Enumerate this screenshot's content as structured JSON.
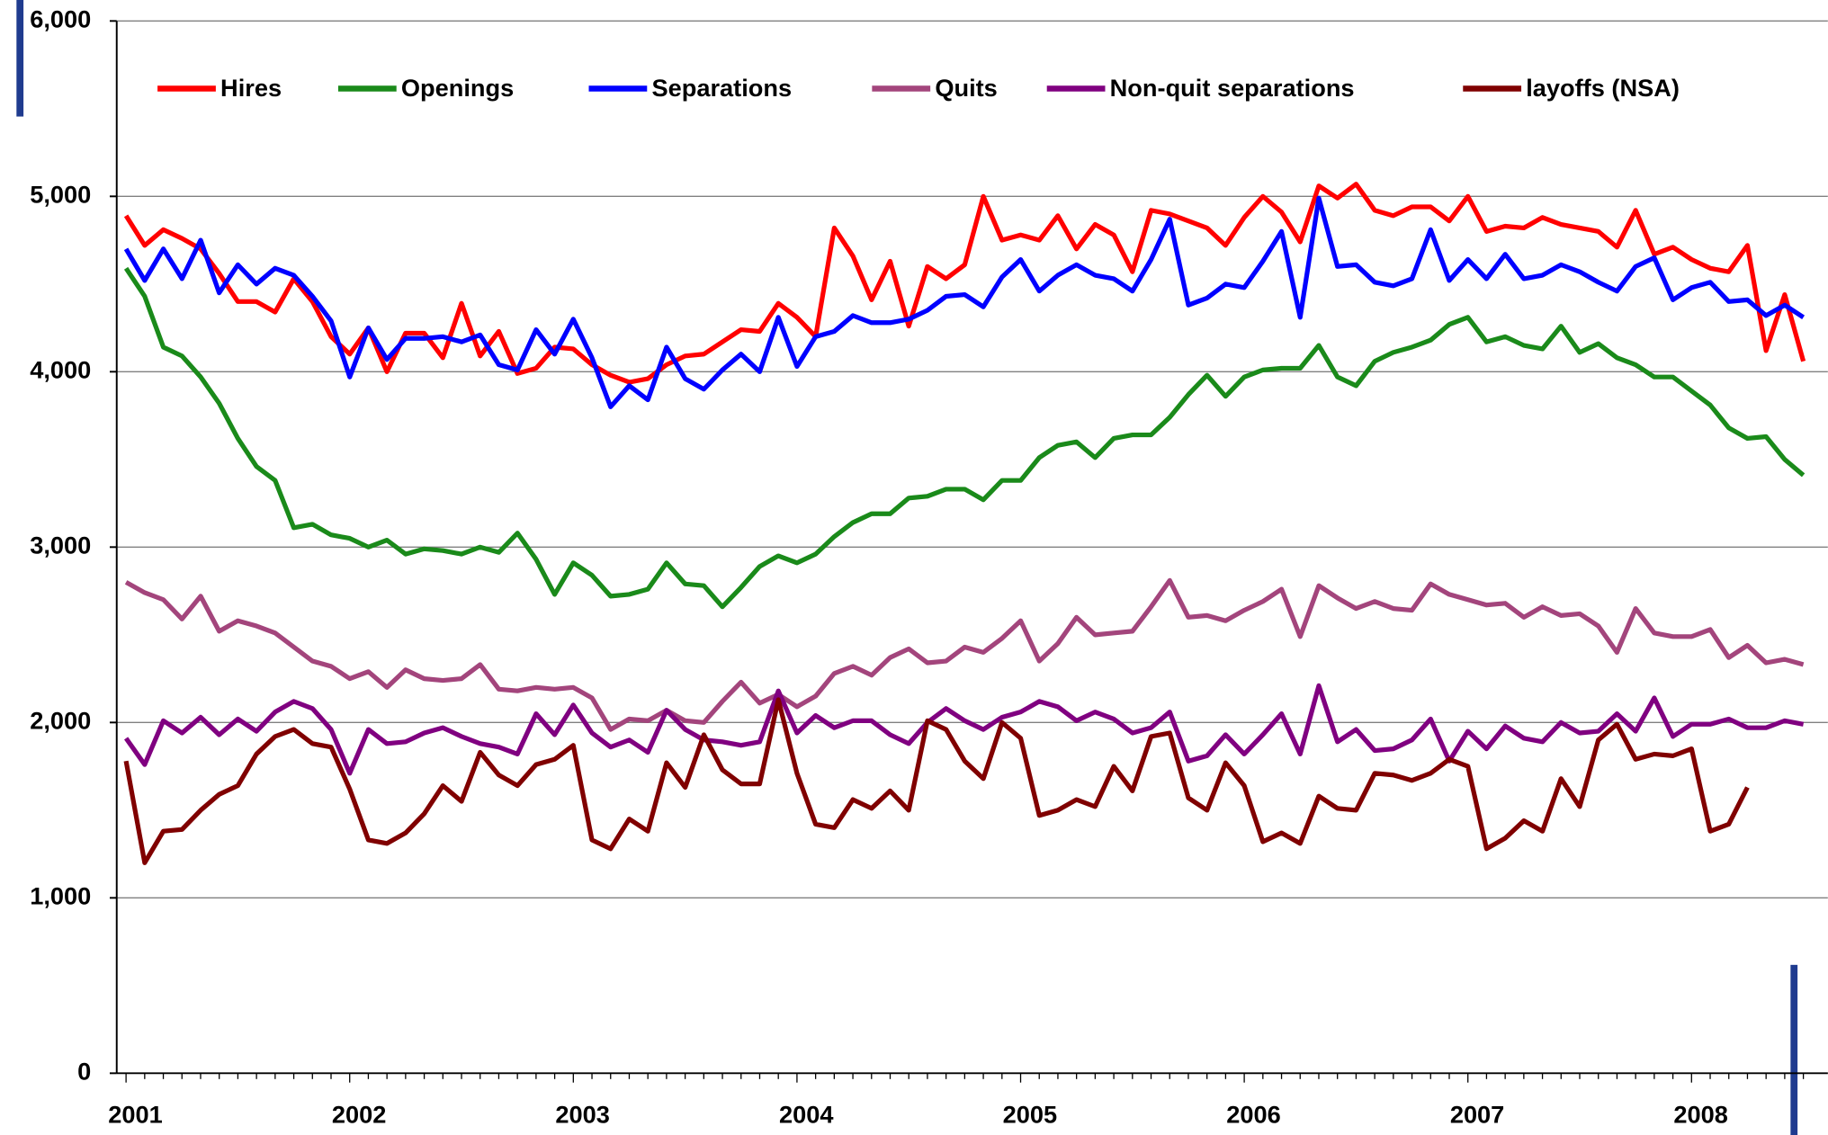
{
  "chart_data": {
    "type": "line",
    "categories": [
      "2001",
      null,
      null,
      null,
      null,
      null,
      null,
      null,
      null,
      null,
      null,
      null,
      "2002",
      null,
      null,
      null,
      null,
      null,
      null,
      null,
      null,
      null,
      null,
      null,
      "2003",
      null,
      null,
      null,
      null,
      null,
      null,
      null,
      null,
      null,
      null,
      null,
      "2004",
      null,
      null,
      null,
      null,
      null,
      null,
      null,
      null,
      null,
      null,
      null,
      "2005",
      null,
      null,
      null,
      null,
      null,
      null,
      null,
      null,
      null,
      null,
      null,
      "2006",
      null,
      null,
      null,
      null,
      null,
      null,
      null,
      null,
      null,
      null,
      null,
      "2007",
      null,
      null,
      null,
      null,
      null,
      null,
      null,
      null,
      null,
      null,
      null,
      "2008",
      null,
      null,
      null,
      null,
      null,
      null
    ],
    "series": [
      {
        "name": "Hires",
        "color": "#ff0000",
        "values": [
          4890,
          4720,
          4810,
          4760,
          4700,
          4560,
          4400,
          4400,
          4340,
          4530,
          4400,
          4200,
          4100,
          4250,
          4000,
          4220,
          4220,
          4080,
          4390,
          4090,
          4230,
          3990,
          4020,
          4140,
          4130,
          4040,
          3980,
          3940,
          3960,
          4040,
          4090,
          4100,
          4170,
          4240,
          4230,
          4390,
          4310,
          4200,
          4820,
          4660,
          4410,
          4630,
          4260,
          4600,
          4530,
          4610,
          5000,
          4750,
          4780,
          4750,
          4890,
          4700,
          4840,
          4780,
          4570,
          4920,
          4900,
          4860,
          4820,
          4720,
          4880,
          5000,
          4910,
          4740,
          5060,
          4990,
          5070,
          4920,
          4890,
          4940,
          4940,
          4860,
          5000,
          4800,
          4830,
          4820,
          4880,
          4840,
          4820,
          4800,
          4710,
          4920,
          4670,
          4710,
          4640,
          4590,
          4570,
          4720,
          4120,
          4440,
          4060
        ]
      },
      {
        "name": "Openings",
        "color": "#1a8a1a",
        "values": [
          4590,
          4430,
          4140,
          4090,
          3970,
          3820,
          3620,
          3460,
          3380,
          3110,
          3130,
          3070,
          3050,
          3000,
          3040,
          2960,
          2990,
          2980,
          2960,
          3000,
          2970,
          3080,
          2930,
          2730,
          2910,
          2840,
          2720,
          2730,
          2760,
          2910,
          2790,
          2780,
          2660,
          2770,
          2890,
          2950,
          2910,
          2960,
          3060,
          3140,
          3190,
          3190,
          3280,
          3290,
          3330,
          3330,
          3270,
          3380,
          3380,
          3510,
          3580,
          3600,
          3510,
          3620,
          3640,
          3640,
          3740,
          3870,
          3980,
          3860,
          3970,
          4010,
          4020,
          4020,
          4150,
          3970,
          3920,
          4060,
          4110,
          4140,
          4180,
          4270,
          4310,
          4170,
          4200,
          4150,
          4130,
          4260,
          4110,
          4160,
          4080,
          4040,
          3970,
          3970,
          3890,
          3810,
          3680,
          3620,
          3630,
          3500,
          3410
        ]
      },
      {
        "name": "Separations",
        "color": "#0000ff",
        "values": [
          4700,
          4520,
          4700,
          4530,
          4750,
          4450,
          4610,
          4500,
          4590,
          4550,
          4430,
          4290,
          3970,
          4250,
          4070,
          4190,
          4190,
          4200,
          4170,
          4210,
          4040,
          4010,
          4240,
          4100,
          4300,
          4080,
          3800,
          3920,
          3840,
          4140,
          3960,
          3900,
          4010,
          4100,
          4000,
          4310,
          4030,
          4200,
          4230,
          4320,
          4280,
          4280,
          4300,
          4350,
          4430,
          4440,
          4370,
          4540,
          4640,
          4460,
          4550,
          4610,
          4550,
          4530,
          4460,
          4640,
          4870,
          4380,
          4420,
          4500,
          4480,
          4630,
          4800,
          4310,
          4990,
          4600,
          4610,
          4510,
          4490,
          4530,
          4810,
          4520,
          4640,
          4530,
          4670,
          4530,
          4550,
          4610,
          4570,
          4510,
          4460,
          4600,
          4650,
          4410,
          4480,
          4510,
          4400,
          4410,
          4320,
          4380,
          4310
        ]
      },
      {
        "name": "Quits",
        "color": "#a3457c",
        "values": [
          2800,
          2740,
          2700,
          2590,
          2720,
          2520,
          2580,
          2550,
          2510,
          2430,
          2350,
          2320,
          2250,
          2290,
          2200,
          2300,
          2250,
          2240,
          2250,
          2330,
          2190,
          2180,
          2200,
          2190,
          2200,
          2140,
          1960,
          2020,
          2010,
          2070,
          2010,
          2000,
          2120,
          2230,
          2110,
          2160,
          2090,
          2150,
          2280,
          2320,
          2270,
          2370,
          2420,
          2340,
          2350,
          2430,
          2400,
          2480,
          2580,
          2350,
          2450,
          2600,
          2500,
          2510,
          2520,
          2660,
          2810,
          2600,
          2610,
          2580,
          2640,
          2690,
          2760,
          2490,
          2780,
          2710,
          2650,
          2690,
          2650,
          2640,
          2790,
          2730,
          2700,
          2670,
          2680,
          2600,
          2660,
          2610,
          2620,
          2550,
          2400,
          2650,
          2510,
          2490,
          2490,
          2530,
          2370,
          2440,
          2340,
          2360,
          2330
        ]
      },
      {
        "name": "Non-quit separations",
        "color": "#800080",
        "values": [
          1910,
          1760,
          2010,
          1940,
          2030,
          1930,
          2020,
          1950,
          2060,
          2120,
          2080,
          1960,
          1710,
          1960,
          1880,
          1890,
          1940,
          1970,
          1920,
          1880,
          1860,
          1820,
          2050,
          1930,
          2100,
          1940,
          1860,
          1900,
          1830,
          2070,
          1960,
          1900,
          1890,
          1870,
          1890,
          2180,
          1940,
          2040,
          1970,
          2010,
          2010,
          1930,
          1880,
          2000,
          2080,
          2010,
          1960,
          2030,
          2060,
          2120,
          2090,
          2010,
          2060,
          2020,
          1940,
          1970,
          2060,
          1780,
          1810,
          1930,
          1820,
          1930,
          2050,
          1820,
          2210,
          1890,
          1960,
          1840,
          1850,
          1900,
          2020,
          1780,
          1950,
          1850,
          1980,
          1910,
          1890,
          2000,
          1940,
          1950,
          2050,
          1950,
          2140,
          1920,
          1990,
          1990,
          2020,
          1970,
          1970,
          2010,
          1990
        ]
      },
      {
        "name": "layoffs (NSA)",
        "color": "#800000",
        "values": [
          1780,
          1200,
          1380,
          1390,
          1500,
          1590,
          1640,
          1820,
          1920,
          1960,
          1880,
          1860,
          1620,
          1330,
          1310,
          1370,
          1480,
          1640,
          1550,
          1830,
          1700,
          1640,
          1760,
          1790,
          1870,
          1330,
          1280,
          1450,
          1380,
          1770,
          1630,
          1930,
          1730,
          1650,
          1650,
          2130,
          1710,
          1420,
          1400,
          1560,
          1510,
          1610,
          1500,
          2010,
          1960,
          1780,
          1680,
          2000,
          1910,
          1470,
          1500,
          1560,
          1520,
          1750,
          1610,
          1920,
          1940,
          1570,
          1500,
          1770,
          1640,
          1320,
          1370,
          1310,
          1580,
          1510,
          1500,
          1710,
          1700,
          1670,
          1710,
          1790,
          1750,
          1280,
          1340,
          1440,
          1380,
          1680,
          1520,
          1900,
          1990,
          1790,
          1820,
          1810,
          1850,
          1380,
          1420,
          1630,
          null,
          null,
          null
        ]
      }
    ],
    "ylim": [
      0,
      6000
    ],
    "yticks": [
      0,
      {
        "value": 1000,
        "label": "1,000"
      },
      {
        "value": 2000,
        "label": "2,000"
      },
      {
        "value": 3000,
        "label": "3,000"
      },
      {
        "value": 4000,
        "label": "4,000"
      },
      {
        "value": 5000,
        "label": "5,000"
      },
      {
        "value": 6000,
        "label": "6,000"
      }
    ],
    "grid": true,
    "legend": "top"
  }
}
